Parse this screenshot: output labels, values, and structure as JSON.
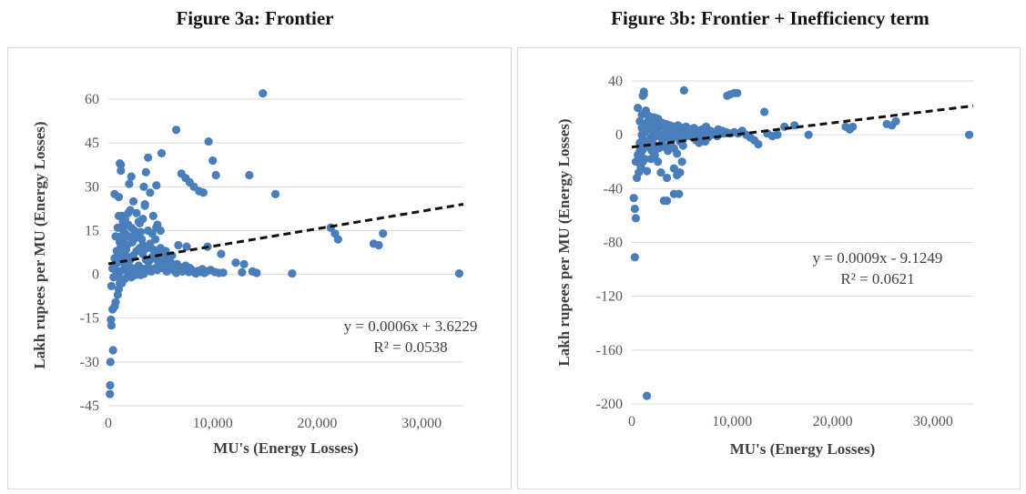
{
  "chart_data": [
    {
      "type": "scatter",
      "title": "Figure 3a: Frontier",
      "xlabel": "MU's (Energy Losses)",
      "ylabel": "Lakh rupees per MU (Energy Losses)",
      "xlim": [
        0,
        34000
      ],
      "ylim": [
        -45,
        65
      ],
      "xticks": [
        0,
        10000,
        20000,
        30000
      ],
      "xtick_labels": [
        "0",
        "10,000",
        "20,000",
        "30,000"
      ],
      "yticks": [
        -45,
        -30,
        -15,
        0,
        15,
        30,
        45,
        60
      ],
      "ytick_labels": [
        "-45",
        "-30",
        "-15",
        "0",
        "15",
        "30",
        "45",
        "60"
      ],
      "grid": "horizontal",
      "point_color": "#4a7ebb",
      "trendline": {
        "slope": 0.0006,
        "intercept": 3.6229,
        "style": "dashed",
        "color": "#111111"
      },
      "equation_label": "y = 0.0006x + 3.6229",
      "r2_label": "R² = 0.0538",
      "points": [
        [
          150,
          -41
        ],
        [
          170,
          -38
        ],
        [
          200,
          -30
        ],
        [
          450,
          -26
        ],
        [
          300,
          -17.5
        ],
        [
          250,
          -15.5
        ],
        [
          400,
          -12
        ],
        [
          600,
          -11
        ],
        [
          700,
          -9.5
        ],
        [
          900,
          -7
        ],
        [
          1000,
          -5
        ],
        [
          1100,
          -3
        ],
        [
          300,
          -4
        ],
        [
          500,
          -1
        ],
        [
          400,
          2
        ],
        [
          600,
          5.5
        ],
        [
          800,
          8
        ],
        [
          700,
          13
        ],
        [
          900,
          16
        ],
        [
          1000,
          20
        ],
        [
          600,
          27.5
        ],
        [
          1000,
          26.5
        ],
        [
          1200,
          35.5
        ],
        [
          1200,
          37.5
        ],
        [
          1100,
          38
        ],
        [
          2000,
          31
        ],
        [
          2200,
          33.5
        ],
        [
          2400,
          25
        ],
        [
          3400,
          30
        ],
        [
          3600,
          35
        ],
        [
          3800,
          40
        ],
        [
          3500,
          24
        ],
        [
          4000,
          28
        ],
        [
          4300,
          20
        ],
        [
          4600,
          30.5
        ],
        [
          5100,
          41.5
        ],
        [
          6500,
          49.5
        ],
        [
          7000,
          34.5
        ],
        [
          7400,
          33
        ],
        [
          7800,
          31.5
        ],
        [
          8200,
          30
        ],
        [
          8700,
          28.5
        ],
        [
          9100,
          28
        ],
        [
          9600,
          45.5
        ],
        [
          10000,
          39
        ],
        [
          10300,
          34
        ],
        [
          13500,
          34
        ],
        [
          14800,
          62
        ],
        [
          16000,
          27.5
        ],
        [
          21300,
          16
        ],
        [
          21700,
          14
        ],
        [
          22000,
          12
        ],
        [
          25400,
          10.5
        ],
        [
          25900,
          10
        ],
        [
          26300,
          14
        ],
        [
          17600,
          0.3
        ],
        [
          33600,
          0.3
        ],
        [
          12200,
          4
        ],
        [
          13000,
          3.5
        ],
        [
          14200,
          0.5
        ],
        [
          13800,
          1
        ],
        [
          10800,
          7
        ],
        [
          9500,
          9.5
        ],
        [
          7500,
          9.5
        ],
        [
          6700,
          10
        ],
        [
          5500,
          8
        ],
        [
          5000,
          9
        ],
        [
          4500,
          12
        ],
        [
          4700,
          17
        ],
        [
          5000,
          15
        ],
        [
          4200,
          14
        ],
        [
          3800,
          15
        ],
        [
          3200,
          12
        ],
        [
          2800,
          14
        ],
        [
          2500,
          15
        ],
        [
          2200,
          16
        ],
        [
          1900,
          17
        ],
        [
          1600,
          19
        ],
        [
          1400,
          18
        ],
        [
          1300,
          20
        ],
        [
          2700,
          21
        ],
        [
          3000,
          17.5
        ],
        [
          2000,
          13
        ],
        [
          2300,
          11
        ],
        [
          1800,
          10
        ],
        [
          1500,
          12
        ],
        [
          1700,
          8.5
        ],
        [
          1200,
          9.5
        ],
        [
          1300,
          6
        ],
        [
          1500,
          4
        ],
        [
          1800,
          3
        ],
        [
          2100,
          2.5
        ],
        [
          2400,
          2
        ],
        [
          2600,
          1.5
        ],
        [
          2900,
          3
        ],
        [
          3200,
          2
        ],
        [
          3500,
          1.5
        ],
        [
          3800,
          2.5
        ],
        [
          4100,
          1
        ],
        [
          4400,
          2
        ],
        [
          4700,
          1.5
        ],
        [
          5000,
          3
        ],
        [
          5300,
          2
        ],
        [
          5600,
          1
        ],
        [
          5900,
          2.5
        ],
        [
          6200,
          1.5
        ],
        [
          6500,
          0.5
        ],
        [
          6800,
          2
        ],
        [
          7100,
          1
        ],
        [
          7400,
          3
        ],
        [
          7700,
          0.8
        ],
        [
          8000,
          1.5
        ],
        [
          8300,
          0.5
        ],
        [
          8600,
          1.2
        ],
        [
          8900,
          0.8
        ],
        [
          9200,
          0.5
        ],
        [
          9800,
          1.5
        ],
        [
          10200,
          0.8
        ],
        [
          10600,
          0.5
        ],
        [
          11000,
          0.6
        ],
        [
          12800,
          0.7
        ],
        [
          1000,
          -1
        ],
        [
          1300,
          -3
        ],
        [
          1600,
          -1.5
        ],
        [
          1900,
          -0.5
        ],
        [
          2200,
          -1
        ],
        [
          2500,
          -0.3
        ],
        [
          2800,
          0
        ],
        [
          3100,
          -0.2
        ],
        [
          3400,
          0.2
        ],
        [
          800,
          0.5
        ],
        [
          1100,
          1
        ],
        [
          1400,
          1.5
        ],
        [
          1700,
          2
        ],
        [
          2000,
          0.8
        ],
        [
          600,
          3
        ],
        [
          900,
          4
        ],
        [
          1200,
          7
        ],
        [
          1500,
          10.5
        ],
        [
          1800,
          6
        ],
        [
          2100,
          5
        ],
        [
          2400,
          6.5
        ],
        [
          2700,
          8
        ],
        [
          3000,
          9
        ],
        [
          3300,
          7
        ],
        [
          3600,
          5
        ],
        [
          3900,
          4.5
        ],
        [
          4200,
          6
        ],
        [
          4500,
          5.5
        ],
        [
          4800,
          4
        ],
        [
          5100,
          3.5
        ],
        [
          5400,
          5
        ],
        [
          5700,
          3
        ],
        [
          6000,
          4
        ],
        [
          6300,
          2.5
        ],
        [
          6600,
          3.5
        ],
        [
          6900,
          1.5
        ],
        [
          7200,
          2.5
        ],
        [
          7500,
          1.8
        ],
        [
          7800,
          2.2
        ],
        [
          8100,
          1
        ],
        [
          8400,
          0.3
        ],
        [
          9000,
          1.8
        ],
        [
          9400,
          1
        ],
        [
          1200,
          13
        ],
        [
          1400,
          15.5
        ],
        [
          1600,
          14
        ],
        [
          1100,
          11
        ],
        [
          2600,
          12.5
        ],
        [
          3100,
          14.5
        ],
        [
          3300,
          10
        ],
        [
          3700,
          9
        ],
        [
          4000,
          10.5
        ],
        [
          4300,
          8.5
        ],
        [
          4600,
          7
        ],
        [
          4900,
          6.5
        ],
        [
          5200,
          7.5
        ],
        [
          5500,
          6
        ],
        [
          5800,
          5.5
        ],
        [
          6100,
          6.5
        ],
        [
          1900,
          21
        ],
        [
          2100,
          22
        ],
        [
          2900,
          18
        ],
        [
          3300,
          19
        ],
        [
          3500,
          23.5
        ],
        [
          4600,
          16
        ]
      ]
    },
    {
      "type": "scatter",
      "title": "Figure 3b: Frontier + Inefficiency term",
      "xlabel": "MU's (Energy Losses)",
      "ylabel": "Lakh rupees per MU (Energy Losses)",
      "xlim": [
        0,
        34000
      ],
      "ylim": [
        -200,
        40
      ],
      "xticks": [
        0,
        10000,
        20000,
        30000
      ],
      "xtick_labels": [
        "0",
        "10,000",
        "20,000",
        "30,000"
      ],
      "yticks": [
        -200,
        -160,
        -120,
        -80,
        -40,
        0,
        40
      ],
      "ytick_labels": [
        "-200",
        "-160",
        "-120",
        "-80",
        "-40",
        "0",
        "40"
      ],
      "grid": "horizontal",
      "point_color": "#4a7ebb",
      "trendline": {
        "slope": 0.0009,
        "intercept": -9.1249,
        "style": "dashed",
        "color": "#111111"
      },
      "equation_label": "y = 0.0009x - 9.1249",
      "r2_label": "R² = 0.0621",
      "points": [
        [
          1500,
          -194
        ],
        [
          300,
          -91
        ],
        [
          400,
          -62
        ],
        [
          300,
          -55
        ],
        [
          200,
          -47
        ],
        [
          500,
          -32
        ],
        [
          700,
          -28
        ],
        [
          900,
          -24
        ],
        [
          1100,
          -20
        ],
        [
          1300,
          -18
        ],
        [
          1500,
          -27
        ],
        [
          600,
          -15
        ],
        [
          800,
          -12
        ],
        [
          1000,
          -10
        ],
        [
          1200,
          -8
        ],
        [
          1400,
          -6
        ],
        [
          1600,
          -5
        ],
        [
          1800,
          -4
        ],
        [
          2000,
          -3
        ],
        [
          2200,
          -2
        ],
        [
          2400,
          -1
        ],
        [
          400,
          -20
        ],
        [
          700,
          -17
        ],
        [
          900,
          -14
        ],
        [
          1100,
          -11
        ],
        [
          3200,
          -49
        ],
        [
          3500,
          -49
        ],
        [
          4200,
          -44
        ],
        [
          4700,
          -44
        ],
        [
          3500,
          -32
        ],
        [
          4500,
          -30
        ],
        [
          4800,
          -28
        ],
        [
          4200,
          -25
        ],
        [
          2900,
          -28
        ],
        [
          1200,
          30
        ],
        [
          1200,
          32
        ],
        [
          1100,
          29
        ],
        [
          5200,
          33
        ],
        [
          9500,
          29
        ],
        [
          9800,
          30
        ],
        [
          10200,
          31
        ],
        [
          10500,
          31
        ],
        [
          13200,
          17
        ],
        [
          1800,
          12
        ],
        [
          2200,
          13
        ],
        [
          2600,
          12
        ],
        [
          3000,
          9
        ],
        [
          3400,
          8
        ],
        [
          3800,
          7
        ],
        [
          4200,
          6
        ],
        [
          4600,
          7
        ],
        [
          5000,
          5
        ],
        [
          5400,
          6
        ],
        [
          5800,
          4
        ],
        [
          6200,
          5
        ],
        [
          6600,
          3
        ],
        [
          7000,
          4
        ],
        [
          7400,
          6
        ],
        [
          7800,
          3
        ],
        [
          8200,
          2
        ],
        [
          8600,
          4
        ],
        [
          9000,
          3
        ],
        [
          9400,
          2
        ],
        [
          9800,
          1
        ],
        [
          10200,
          2
        ],
        [
          10600,
          1
        ],
        [
          11000,
          3
        ],
        [
          11400,
          0
        ],
        [
          11800,
          -2
        ],
        [
          12200,
          -4
        ],
        [
          12600,
          -7
        ],
        [
          13500,
          1
        ],
        [
          14000,
          -1
        ],
        [
          14500,
          0
        ],
        [
          15200,
          6
        ],
        [
          16200,
          7
        ],
        [
          17600,
          0
        ],
        [
          21300,
          6
        ],
        [
          21700,
          4
        ],
        [
          22000,
          6
        ],
        [
          25400,
          8
        ],
        [
          25900,
          7
        ],
        [
          26300,
          10
        ],
        [
          33600,
          0
        ],
        [
          1000,
          0
        ],
        [
          1300,
          2
        ],
        [
          1600,
          4
        ],
        [
          1900,
          -2
        ],
        [
          2200,
          1
        ],
        [
          2500,
          3
        ],
        [
          2800,
          -1
        ],
        [
          3100,
          0
        ],
        [
          3400,
          -2
        ],
        [
          3700,
          2
        ],
        [
          4000,
          -3
        ],
        [
          4300,
          1
        ],
        [
          4600,
          -1
        ],
        [
          4900,
          2
        ],
        [
          5200,
          -2
        ],
        [
          5500,
          1
        ],
        [
          5800,
          -1
        ],
        [
          6100,
          2
        ],
        [
          6400,
          -2
        ],
        [
          6700,
          0
        ],
        [
          7000,
          -1
        ],
        [
          7300,
          1
        ],
        [
          7600,
          -2
        ],
        [
          7900,
          0
        ],
        [
          8500,
          -1
        ],
        [
          9100,
          1
        ],
        [
          1000,
          5
        ],
        [
          1300,
          8
        ],
        [
          1600,
          10
        ],
        [
          1900,
          6
        ],
        [
          2200,
          7
        ],
        [
          2500,
          5
        ],
        [
          2800,
          9
        ],
        [
          3100,
          6
        ],
        [
          3400,
          4
        ],
        [
          3700,
          5
        ],
        [
          4000,
          3
        ],
        [
          4300,
          4
        ],
        [
          4600,
          3
        ],
        [
          4900,
          1
        ],
        [
          5200,
          2
        ],
        [
          5500,
          3
        ],
        [
          5800,
          1
        ],
        [
          6100,
          -1
        ],
        [
          6400,
          -4
        ],
        [
          6700,
          -6
        ],
        [
          7000,
          -3
        ],
        [
          7300,
          -5
        ],
        [
          2400,
          -8
        ],
        [
          2700,
          -10
        ],
        [
          3000,
          -6
        ],
        [
          3300,
          -9
        ],
        [
          3600,
          -12
        ],
        [
          3900,
          -7
        ],
        [
          4200,
          -10
        ],
        [
          4500,
          -14
        ],
        [
          4800,
          -5
        ],
        [
          5100,
          -8
        ],
        [
          800,
          -6
        ],
        [
          1100,
          -3
        ],
        [
          1400,
          -7
        ],
        [
          1700,
          -9
        ],
        [
          2000,
          -12
        ],
        [
          2300,
          -15
        ],
        [
          1000,
          15
        ],
        [
          1400,
          18
        ],
        [
          1700,
          14
        ],
        [
          800,
          10
        ],
        [
          600,
          20
        ],
        [
          5000,
          -20
        ],
        [
          2600,
          -20
        ],
        [
          1900,
          -18
        ]
      ]
    }
  ]
}
